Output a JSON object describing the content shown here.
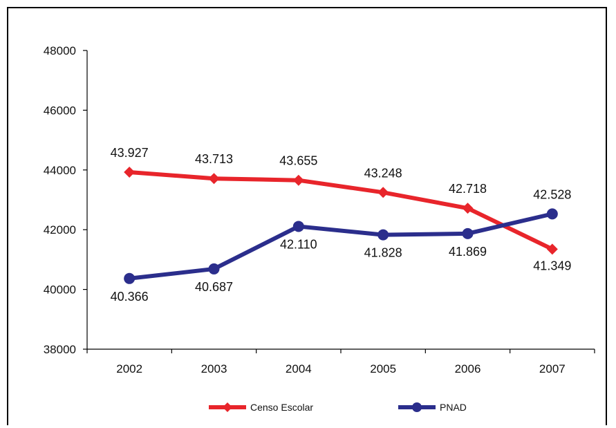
{
  "chart_data": {
    "type": "line",
    "categories": [
      "2002",
      "2003",
      "2004",
      "2005",
      "2006",
      "2007"
    ],
    "y_ticks": [
      "38000",
      "40000",
      "42000",
      "44000",
      "46000",
      "48000"
    ],
    "ylim": [
      38000,
      48000
    ],
    "grid": false,
    "legend_position": "bottom",
    "series": [
      {
        "name": "Censo Escolar",
        "color": "#e8252b",
        "marker": "diamond",
        "values": [
          43927,
          43713,
          43655,
          43248,
          42718,
          41349
        ],
        "labels": [
          "43.927",
          "43.713",
          "43.655",
          "43.248",
          "42.718",
          "41.349"
        ]
      },
      {
        "name": "PNAD",
        "color": "#2b2e8c",
        "marker": "circle",
        "values": [
          40366,
          40687,
          42110,
          41828,
          41869,
          42528
        ],
        "labels": [
          "40.366",
          "40.687",
          "42.110",
          "41.828",
          "41.869",
          "42.528"
        ]
      }
    ]
  }
}
